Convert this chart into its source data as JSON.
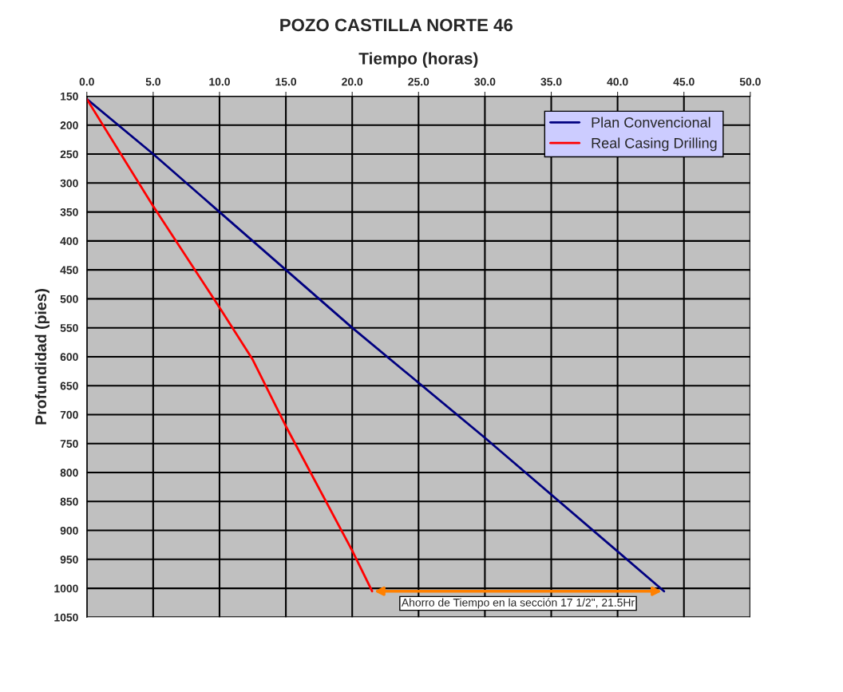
{
  "chart_data": {
    "type": "line",
    "title": "POZO CASTILLA NORTE 46",
    "xlabel": "Tiempo (horas)",
    "ylabel": "Profundidad (pies)",
    "xlim": [
      0,
      50
    ],
    "ylim": [
      1050,
      150
    ],
    "xticks": [
      {
        "value": 0,
        "label": "0.0"
      },
      {
        "value": 5,
        "label": "5.0"
      },
      {
        "value": 10,
        "label": "10.0"
      },
      {
        "value": 15,
        "label": "15.0"
      },
      {
        "value": 20,
        "label": "20.0"
      },
      {
        "value": 25,
        "label": "25.0"
      },
      {
        "value": 30,
        "label": "30.0"
      },
      {
        "value": 35,
        "label": "35.0"
      },
      {
        "value": 40,
        "label": "40.0"
      },
      {
        "value": 45,
        "label": "45.0"
      },
      {
        "value": 50,
        "label": "50.0"
      }
    ],
    "yticks": [
      150,
      200,
      250,
      300,
      350,
      400,
      450,
      500,
      550,
      600,
      650,
      700,
      750,
      800,
      850,
      900,
      950,
      1000,
      1050
    ],
    "grid": true,
    "legend": "top right",
    "marker": "none",
    "line_style": "solid",
    "series": [
      {
        "name": "Plan Convencional",
        "color": "#000080",
        "x": [
          0,
          5,
          10,
          15,
          20,
          30,
          43.5
        ],
        "values": [
          155,
          250,
          350,
          450,
          550,
          740,
          1005
        ]
      },
      {
        "name": "Real Casing Drilling",
        "color": "#ff0000",
        "x": [
          0,
          5,
          10,
          12.5,
          15,
          20,
          21.5
        ],
        "values": [
          155,
          340,
          515,
          605,
          720,
          935,
          1005
        ]
      }
    ],
    "annotations": [
      "Ahorro de Tiempo en la sección 17 1/2\", 21.5Hr"
    ]
  }
}
